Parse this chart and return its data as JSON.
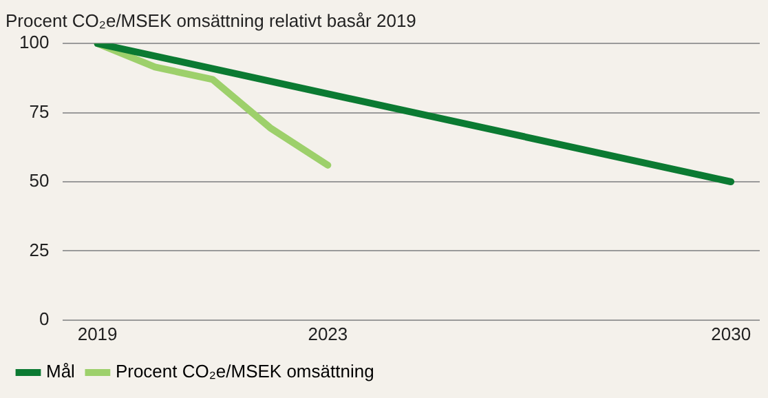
{
  "chart_data": {
    "type": "line",
    "title": "Procent CO₂e/MSEK omsättning relativt basår 2019",
    "xlim": [
      2018.4,
      2030.5
    ],
    "xticks": [
      2019,
      2023,
      2030
    ],
    "ylim": [
      0,
      100
    ],
    "yticks": [
      0,
      25,
      50,
      75,
      100
    ],
    "grid": "y",
    "legend": "bottom left",
    "marker": "none",
    "line_style": "solid",
    "series": [
      {
        "name": "Mål",
        "color": "#0b7a32",
        "x": [
          2019,
          2030
        ],
        "values": [
          100,
          50
        ]
      },
      {
        "name": "Procent CO₂e/MSEK omsättning",
        "color": "#9dd06b",
        "x": [
          2019,
          2020,
          2021,
          2022,
          2023
        ],
        "values": [
          100,
          91.5,
          87,
          69.5,
          56
        ]
      }
    ]
  }
}
